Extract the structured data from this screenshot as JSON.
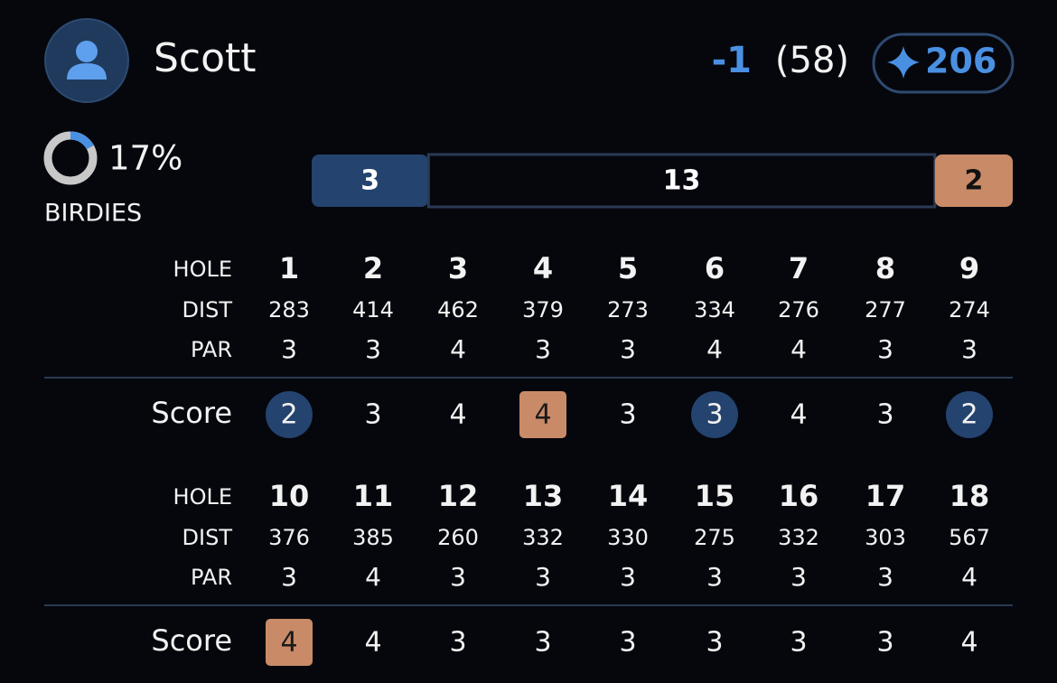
{
  "player": {
    "name": "Scott",
    "to_par": "-1",
    "total": "(58)",
    "points": "206"
  },
  "stats": {
    "birdie": {
      "value": 17,
      "label": "17%"
    },
    "birdie_title": "BIRDIES",
    "bar": [
      3,
      13,
      2
    ]
  },
  "labels": {
    "hole": "HOLE",
    "dist": "DIST",
    "par": "PAR",
    "score": "Score"
  },
  "nines": [
    {
      "holes": [
        1,
        2,
        3,
        4,
        5,
        6,
        7,
        8,
        9
      ],
      "dist": [
        283,
        414,
        462,
        379,
        273,
        334,
        276,
        277,
        274
      ],
      "par": [
        3,
        3,
        4,
        3,
        3,
        4,
        4,
        3,
        3
      ],
      "score": [
        2,
        3,
        4,
        4,
        3,
        3,
        4,
        3,
        2
      ]
    },
    {
      "holes": [
        10,
        11,
        12,
        13,
        14,
        15,
        16,
        17,
        18
      ],
      "dist": [
        376,
        385,
        260,
        332,
        330,
        275,
        332,
        303,
        567
      ],
      "par": [
        3,
        4,
        3,
        3,
        3,
        3,
        3,
        3,
        4
      ],
      "score": [
        4,
        4,
        3,
        3,
        3,
        3,
        3,
        3,
        4
      ]
    }
  ]
}
